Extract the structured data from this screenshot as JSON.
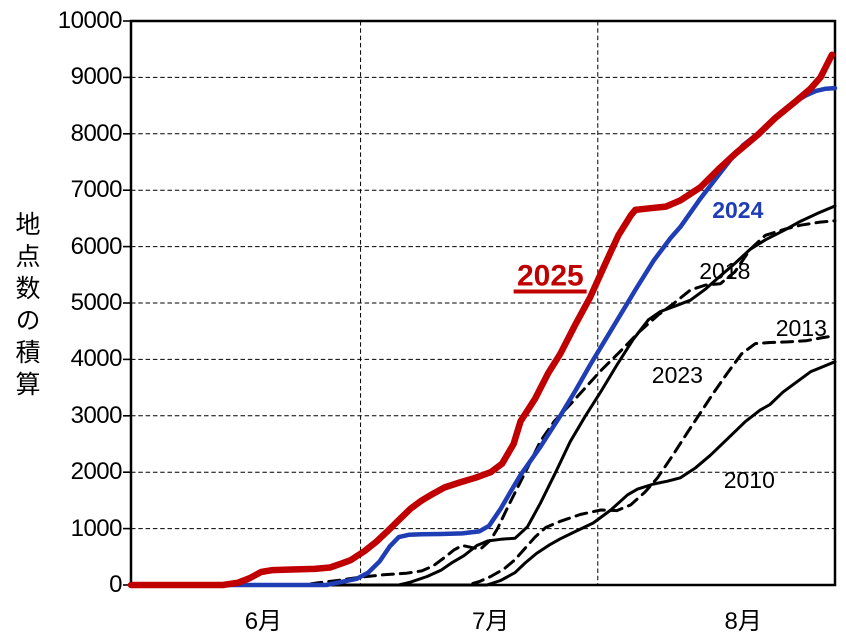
{
  "page": {
    "background": "#ffffff"
  },
  "chart_data": {
    "type": "line",
    "title": "",
    "xlabel": "",
    "ylabel": "地点数の積算",
    "grid": "dashed",
    "legend_position": "inline-labels",
    "x_axis": {
      "unit": "days-from-june-1",
      "range_days": 92,
      "gridline_days": [
        30,
        61
      ],
      "month_labels": [
        {
          "label": "6月",
          "day": 17.3
        },
        {
          "label": "7月",
          "day": 47.0
        },
        {
          "label": "8月",
          "day": 80.0
        }
      ]
    },
    "y_axis": {
      "min": 0,
      "max": 10000,
      "tick_step": 1000,
      "tick_labels": [
        "0",
        "1000",
        "2000",
        "3000",
        "4000",
        "5000",
        "6000",
        "7000",
        "8000",
        "9000",
        "10000"
      ]
    },
    "series": [
      {
        "name": "2010",
        "color": "#000000",
        "style": "solid",
        "width": 3,
        "label": {
          "text": "2010",
          "day": 80.8,
          "value": 1860
        },
        "points": [
          [
            0,
            0
          ],
          [
            46.5,
            0
          ],
          [
            48.3,
            80
          ],
          [
            50.2,
            220
          ],
          [
            51.5,
            390
          ],
          [
            53,
            560
          ],
          [
            54.8,
            720
          ],
          [
            56.1,
            820
          ],
          [
            58.1,
            950
          ],
          [
            60.4,
            1100
          ],
          [
            62.7,
            1330
          ],
          [
            64.9,
            1600
          ],
          [
            66.2,
            1700
          ],
          [
            68.3,
            1790
          ],
          [
            70.1,
            1840
          ],
          [
            71.8,
            1900
          ],
          [
            73.8,
            2080
          ],
          [
            75.7,
            2300
          ],
          [
            78,
            2600
          ],
          [
            80.3,
            2900
          ],
          [
            82.2,
            3100
          ],
          [
            83.5,
            3200
          ],
          [
            85.2,
            3420
          ],
          [
            87.2,
            3620
          ],
          [
            88.8,
            3780
          ],
          [
            90.4,
            3870
          ],
          [
            92,
            3960
          ]
        ]
      },
      {
        "name": "2013",
        "color": "#000000",
        "style": "dashed",
        "width": 3,
        "label": {
          "text": "2013",
          "day": 87.6,
          "value": 4560
        },
        "points": [
          [
            0,
            0
          ],
          [
            44,
            0
          ],
          [
            45.5,
            60
          ],
          [
            47,
            150
          ],
          [
            48.7,
            280
          ],
          [
            50.2,
            450
          ],
          [
            51.5,
            650
          ],
          [
            52.8,
            850
          ],
          [
            54.2,
            1020
          ],
          [
            56.1,
            1130
          ],
          [
            58.7,
            1250
          ],
          [
            61.4,
            1330
          ],
          [
            63.5,
            1320
          ],
          [
            65.3,
            1420
          ],
          [
            67.2,
            1650
          ],
          [
            68.8,
            1900
          ],
          [
            70.8,
            2300
          ],
          [
            72.7,
            2700
          ],
          [
            74.4,
            3050
          ],
          [
            76.1,
            3400
          ],
          [
            77.9,
            3750
          ],
          [
            79.8,
            4100
          ],
          [
            81.6,
            4280
          ],
          [
            83.5,
            4300
          ],
          [
            85.8,
            4310
          ],
          [
            88.2,
            4330
          ],
          [
            90.1,
            4380
          ],
          [
            92,
            4420
          ]
        ]
      },
      {
        "name": "2018",
        "color": "#000000",
        "style": "dashed",
        "width": 3,
        "label": {
          "text": "2018",
          "day": 77.6,
          "value": 5570
        },
        "points": [
          [
            0,
            0
          ],
          [
            22.5,
            0
          ],
          [
            24.5,
            40
          ],
          [
            27,
            80
          ],
          [
            30,
            140
          ],
          [
            33,
            180
          ],
          [
            36,
            210
          ],
          [
            38,
            250
          ],
          [
            39.5,
            340
          ],
          [
            40.9,
            480
          ],
          [
            42.2,
            620
          ],
          [
            43.3,
            700
          ],
          [
            44.7,
            660
          ],
          [
            45.7,
            640
          ],
          [
            47,
            800
          ],
          [
            47.9,
            1000
          ],
          [
            49.3,
            1400
          ],
          [
            50.6,
            1750
          ],
          [
            51.9,
            2100
          ],
          [
            53.5,
            2550
          ],
          [
            55.3,
            2900
          ],
          [
            57.4,
            3200
          ],
          [
            59.4,
            3500
          ],
          [
            61.4,
            3800
          ],
          [
            64,
            4150
          ],
          [
            66.5,
            4500
          ],
          [
            69,
            4800
          ],
          [
            71,
            5000
          ],
          [
            73.1,
            5230
          ],
          [
            75.1,
            5320
          ],
          [
            77,
            5340
          ],
          [
            78.9,
            5550
          ],
          [
            80.9,
            5950
          ],
          [
            82.9,
            6200
          ],
          [
            85.5,
            6310
          ],
          [
            87.5,
            6380
          ],
          [
            89.9,
            6430
          ],
          [
            92,
            6460
          ]
        ]
      },
      {
        "name": "2023",
        "color": "#000000",
        "style": "solid",
        "width": 3,
        "label": {
          "text": "2023",
          "day": 71.4,
          "value": 3720
        },
        "points": [
          [
            0,
            0
          ],
          [
            35,
            0
          ],
          [
            36.5,
            50
          ],
          [
            38.7,
            150
          ],
          [
            40.5,
            260
          ],
          [
            42,
            400
          ],
          [
            43.5,
            520
          ],
          [
            45.2,
            700
          ],
          [
            46.6,
            780
          ],
          [
            48.3,
            810
          ],
          [
            50.2,
            830
          ],
          [
            51.8,
            1030
          ],
          [
            53.5,
            1450
          ],
          [
            55.5,
            2000
          ],
          [
            57.4,
            2540
          ],
          [
            59.4,
            3000
          ],
          [
            61.5,
            3450
          ],
          [
            63.5,
            3900
          ],
          [
            65.6,
            4350
          ],
          [
            67.6,
            4700
          ],
          [
            69.2,
            4850
          ],
          [
            71.2,
            4950
          ],
          [
            73.1,
            5050
          ],
          [
            75.1,
            5250
          ],
          [
            77.2,
            5500
          ],
          [
            78.9,
            5700
          ],
          [
            80.9,
            5950
          ],
          [
            82.9,
            6120
          ],
          [
            85.5,
            6300
          ],
          [
            87.5,
            6450
          ],
          [
            89.9,
            6600
          ],
          [
            92,
            6720
          ]
        ]
      },
      {
        "name": "2024",
        "color": "#1f3db4",
        "style": "solid",
        "width": 4.5,
        "label": {
          "text": "2024",
          "day": 79.3,
          "value": 6650
        },
        "points": [
          [
            0,
            0
          ],
          [
            25.5,
            0
          ],
          [
            27,
            40
          ],
          [
            29.5,
            110
          ],
          [
            31,
            220
          ],
          [
            32.5,
            420
          ],
          [
            33.8,
            680
          ],
          [
            35,
            850
          ],
          [
            36.3,
            890
          ],
          [
            38,
            900
          ],
          [
            40.5,
            905
          ],
          [
            43.3,
            915
          ],
          [
            45.5,
            950
          ],
          [
            46.8,
            1050
          ],
          [
            48.3,
            1350
          ],
          [
            49.8,
            1700
          ],
          [
            50.9,
            1950
          ],
          [
            53.5,
            2450
          ],
          [
            56.1,
            3000
          ],
          [
            58.1,
            3450
          ],
          [
            60,
            3900
          ],
          [
            62,
            4350
          ],
          [
            64,
            4800
          ],
          [
            66,
            5250
          ],
          [
            68.3,
            5750
          ],
          [
            70.5,
            6150
          ],
          [
            71.8,
            6350
          ],
          [
            74.4,
            6850
          ],
          [
            76.4,
            7200
          ],
          [
            78.4,
            7550
          ],
          [
            80,
            7800
          ],
          [
            81.9,
            8000
          ],
          [
            84.2,
            8300
          ],
          [
            86.2,
            8520
          ],
          [
            88.2,
            8680
          ],
          [
            89.5,
            8760
          ],
          [
            90.8,
            8800
          ],
          [
            92,
            8810
          ]
        ]
      },
      {
        "name": "2025",
        "color": "#c00000",
        "style": "solid",
        "width": 6.5,
        "label": {
          "text": "2025",
          "day": 54.8,
          "value": 5430
        },
        "points": [
          [
            0,
            0
          ],
          [
            12,
            0
          ],
          [
            14,
            40
          ],
          [
            15.5,
            120
          ],
          [
            17,
            230
          ],
          [
            18.5,
            265
          ],
          [
            21,
            275
          ],
          [
            24,
            285
          ],
          [
            26,
            310
          ],
          [
            27.5,
            380
          ],
          [
            28.7,
            440
          ],
          [
            30.5,
            600
          ],
          [
            32,
            760
          ],
          [
            33.5,
            950
          ],
          [
            35,
            1150
          ],
          [
            36.5,
            1350
          ],
          [
            38,
            1500
          ],
          [
            39.5,
            1620
          ],
          [
            41,
            1730
          ],
          [
            43,
            1820
          ],
          [
            45,
            1900
          ],
          [
            47,
            2000
          ],
          [
            48.5,
            2150
          ],
          [
            50,
            2500
          ],
          [
            50.9,
            2900
          ],
          [
            52.8,
            3300
          ],
          [
            54.5,
            3750
          ],
          [
            56.1,
            4100
          ],
          [
            58,
            4600
          ],
          [
            60,
            5100
          ],
          [
            62,
            5700
          ],
          [
            63.7,
            6200
          ],
          [
            65.3,
            6550
          ],
          [
            65.9,
            6650
          ],
          [
            67.9,
            6680
          ],
          [
            69.9,
            6710
          ],
          [
            71.8,
            6820
          ],
          [
            74.4,
            7050
          ],
          [
            77,
            7400
          ],
          [
            79,
            7650
          ],
          [
            80.3,
            7800
          ],
          [
            81.9,
            7980
          ],
          [
            84.2,
            8280
          ],
          [
            86.9,
            8580
          ],
          [
            88.8,
            8800
          ],
          [
            90.1,
            9000
          ],
          [
            91.6,
            9400
          ]
        ]
      }
    ]
  }
}
